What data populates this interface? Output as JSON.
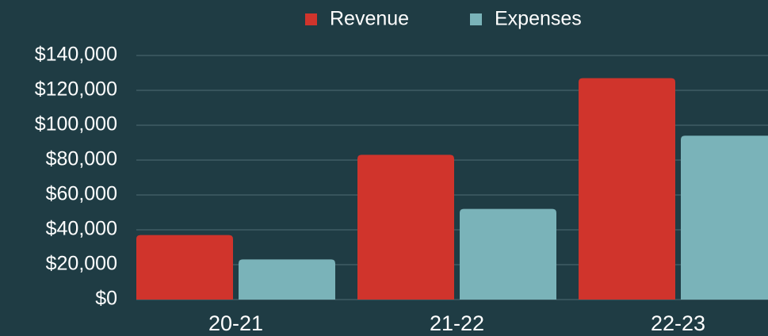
{
  "chart_data": {
    "type": "bar",
    "categories": [
      "20-21",
      "21-22",
      "22-23"
    ],
    "series": [
      {
        "name": "Revenue",
        "color": "#d0342c",
        "values": [
          37000,
          83000,
          127000
        ]
      },
      {
        "name": "Expenses",
        "color": "#7ab3b9",
        "values": [
          23000,
          52000,
          94000
        ]
      }
    ],
    "ylim": [
      0,
      140000
    ],
    "yticks": [
      {
        "value": 0,
        "label": "$0"
      },
      {
        "value": 20000,
        "label": "$20,000"
      },
      {
        "value": 40000,
        "label": "$40,000"
      },
      {
        "value": 60000,
        "label": "$60,000"
      },
      {
        "value": 80000,
        "label": "$80,000"
      },
      {
        "value": 100000,
        "label": "$100,000"
      },
      {
        "value": 120000,
        "label": "$120,000"
      },
      {
        "value": 140000,
        "label": "$140,000"
      }
    ],
    "grid": true,
    "legend": "top"
  }
}
